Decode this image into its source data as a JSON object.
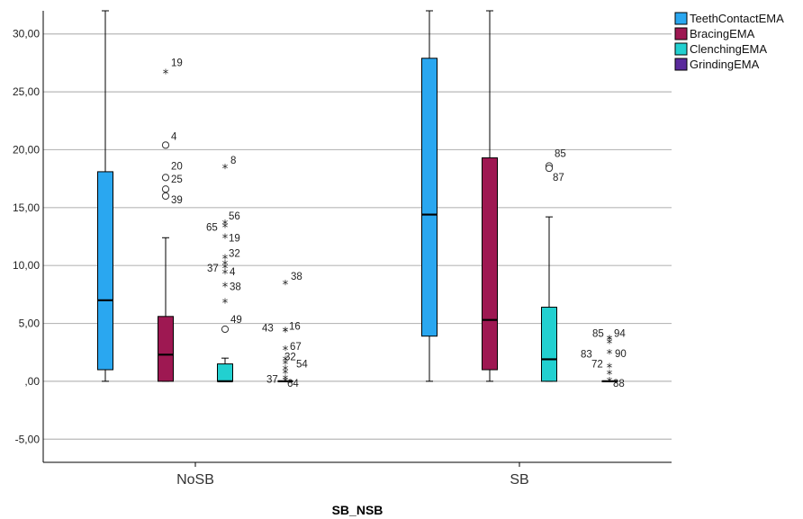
{
  "chart_data": {
    "type": "boxplot",
    "xlabel": "SB_NSB",
    "ylabel": "",
    "ylim": [
      -7,
      32
    ],
    "yticks": [
      -5,
      0,
      5,
      10,
      15,
      20,
      25,
      30
    ],
    "ytick_labels": [
      "-5,00",
      ",00",
      "5,00",
      "10,00",
      "15,00",
      "20,00",
      "25,00",
      "30,00"
    ],
    "grid": true,
    "legend_position": "top-right",
    "categories": [
      "NoSB",
      "SB"
    ],
    "series": [
      {
        "name": "TeethContactEMA",
        "color": "#2aa7f0",
        "boxes": [
          {
            "category": "NoSB",
            "whisker_low": 0,
            "q1": 1.0,
            "median": 7.0,
            "q3": 18.1,
            "whisker_high": 32,
            "outliers": []
          },
          {
            "category": "SB",
            "whisker_low": 0,
            "q1": 3.9,
            "median": 14.4,
            "q3": 27.9,
            "whisker_high": 32,
            "outliers": []
          }
        ]
      },
      {
        "name": "BracingEMA",
        "color": "#9e1852",
        "boxes": [
          {
            "category": "NoSB",
            "whisker_low": 0,
            "q1": 0,
            "median": 2.3,
            "q3": 5.6,
            "whisker_high": 12.4,
            "outliers": [
              {
                "label": "19",
                "value": 26.6,
                "marker": "star"
              },
              {
                "label": "4",
                "value": 20.4,
                "marker": "circle"
              },
              {
                "label": "20",
                "value": 17.6,
                "marker": "circle"
              },
              {
                "label": "25",
                "value": 16.6,
                "marker": "circle"
              },
              {
                "label": "39",
                "value": 16.0,
                "marker": "circle"
              }
            ]
          },
          {
            "category": "SB",
            "whisker_low": 0,
            "q1": 1.0,
            "median": 5.3,
            "q3": 19.3,
            "whisker_high": 32,
            "outliers": []
          }
        ]
      },
      {
        "name": "ClenchingEMA",
        "color": "#22d0d0",
        "boxes": [
          {
            "category": "NoSB",
            "whisker_low": 0,
            "q1": 0,
            "median": 0,
            "q3": 1.5,
            "whisker_high": 2.0,
            "outliers": [
              {
                "label": "8",
                "value": 18.4,
                "marker": "star"
              },
              {
                "label": "65",
                "value": 13.3,
                "marker": "star"
              },
              {
                "label": "56",
                "value": 13.6,
                "marker": "star"
              },
              {
                "label": "19",
                "value": 12.4,
                "marker": "star"
              },
              {
                "label": "32",
                "value": 10.6,
                "marker": "star"
              },
              {
                "label": "",
                "value": 10.1,
                "marker": "star"
              },
              {
                "label": "37",
                "value": 9.8,
                "marker": "star"
              },
              {
                "label": "4",
                "value": 9.3,
                "marker": "star"
              },
              {
                "label": "38",
                "value": 8.2,
                "marker": "star"
              },
              {
                "label": "",
                "value": 6.8,
                "marker": "star"
              },
              {
                "label": "49",
                "value": 4.5,
                "marker": "circle"
              }
            ]
          },
          {
            "category": "SB",
            "whisker_low": 0,
            "q1": 0,
            "median": 1.9,
            "q3": 6.4,
            "whisker_high": 14.2,
            "outliers": [
              {
                "label": "85",
                "value": 18.6,
                "marker": "circle"
              },
              {
                "label": "87",
                "value": 18.4,
                "marker": "circle"
              }
            ]
          }
        ]
      },
      {
        "name": "GrindingEMA",
        "color": "#5a2a9c",
        "boxes": [
          {
            "category": "NoSB",
            "whisker_low": 0,
            "q1": 0,
            "median": 0,
            "q3": 0,
            "whisker_high": 0,
            "outliers": [
              {
                "label": "38",
                "value": 8.4,
                "marker": "star"
              },
              {
                "label": "43",
                "value": 4.3,
                "marker": "star"
              },
              {
                "label": "16",
                "value": 4.3,
                "marker": "star"
              },
              {
                "label": "67",
                "value": 2.7,
                "marker": "star"
              },
              {
                "label": "32",
                "value": 1.8,
                "marker": "star"
              },
              {
                "label": "54",
                "value": 1.5,
                "marker": "star"
              },
              {
                "label": "",
                "value": 1.0,
                "marker": "star"
              },
              {
                "label": "",
                "value": 0.7,
                "marker": "star"
              },
              {
                "label": "37",
                "value": 0.2,
                "marker": "star"
              },
              {
                "label": "64",
                "value": 0.0,
                "marker": "star"
              }
            ]
          },
          {
            "category": "SB",
            "whisker_low": 0,
            "q1": 0,
            "median": 0,
            "q3": 0,
            "whisker_high": 0,
            "outliers": [
              {
                "label": "85",
                "value": 3.6,
                "marker": "star"
              },
              {
                "label": "94",
                "value": 3.6,
                "marker": "star"
              },
              {
                "label": "83",
                "value": 3.3,
                "marker": "star"
              },
              {
                "label": "90",
                "value": 2.4,
                "marker": "star"
              },
              {
                "label": "72",
                "value": 1.2,
                "marker": "star"
              },
              {
                "label": "",
                "value": 0.6,
                "marker": "star"
              },
              {
                "label": "88",
                "value": 0.0,
                "marker": "star"
              }
            ]
          }
        ]
      }
    ]
  }
}
